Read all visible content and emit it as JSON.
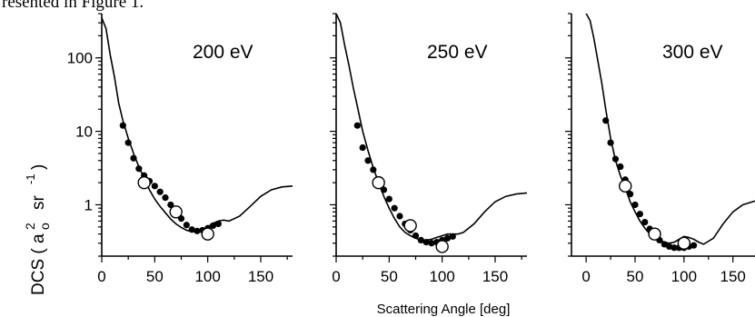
{
  "caption": "resented in Figure 1.",
  "axes": {
    "ylabel": "DCS ( a",
    "ylabel_sub": "o",
    "ylabel_sup": "2",
    "ylabel_unit": "sr",
    "ylabel_unit_sup": "-1",
    "ylabel_close": ")",
    "xlabel": "Scattering Angle [deg]",
    "yscale": "log"
  },
  "chart_data": [
    {
      "type": "line",
      "title": "200 eV",
      "xlim": [
        0,
        180
      ],
      "ylim": [
        0.2,
        400
      ],
      "xticks": [
        0,
        50,
        100,
        150
      ],
      "yticks": [
        1,
        10,
        100
      ],
      "ytick_labels": [
        "1",
        "10",
        "100"
      ],
      "series": [
        {
          "kind": "line",
          "x": [
            0,
            4,
            8,
            12,
            16,
            20,
            25,
            30,
            35,
            40,
            45,
            50,
            55,
            60,
            65,
            70,
            75,
            80,
            85,
            90,
            95,
            100,
            105,
            110,
            115,
            120,
            130,
            140,
            150,
            160,
            170,
            180
          ],
          "y": [
            350,
            250,
            110,
            55,
            24,
            14,
            8,
            5,
            3.3,
            2.3,
            1.6,
            1.2,
            0.95,
            0.78,
            0.64,
            0.55,
            0.49,
            0.45,
            0.43,
            0.43,
            0.45,
            0.5,
            0.56,
            0.6,
            0.62,
            0.6,
            0.7,
            0.95,
            1.3,
            1.6,
            1.75,
            1.8
          ]
        },
        {
          "kind": "filled-points",
          "x": [
            20,
            25,
            30,
            35,
            40,
            45,
            50,
            55,
            60,
            65,
            70,
            75,
            80,
            85,
            90,
            95,
            100,
            105,
            110
          ],
          "y": [
            12,
            7,
            4.3,
            3.1,
            2.5,
            2.1,
            1.8,
            1.5,
            1.25,
            1.0,
            0.82,
            0.65,
            0.53,
            0.46,
            0.44,
            0.45,
            0.48,
            0.52,
            0.55
          ]
        },
        {
          "kind": "open-points",
          "x": [
            40,
            70,
            100
          ],
          "y": [
            2.0,
            0.8,
            0.4
          ]
        }
      ]
    },
    {
      "type": "line",
      "title": "250 eV",
      "xlim": [
        0,
        180
      ],
      "ylim": [
        0.2,
        400
      ],
      "xticks": [
        0,
        50,
        100,
        150
      ],
      "yticks": [
        1,
        10,
        100
      ],
      "ytick_labels": [],
      "series": [
        {
          "kind": "line",
          "x": [
            0,
            4,
            8,
            12,
            16,
            20,
            25,
            30,
            35,
            40,
            45,
            50,
            55,
            60,
            65,
            70,
            75,
            80,
            85,
            90,
            95,
            100,
            105,
            110,
            115,
            120,
            130,
            140,
            150,
            160,
            170,
            180
          ],
          "y": [
            400,
            300,
            150,
            80,
            40,
            22,
            10,
            5.5,
            3.2,
            2.0,
            1.3,
            0.9,
            0.65,
            0.5,
            0.42,
            0.38,
            0.35,
            0.33,
            0.33,
            0.34,
            0.36,
            0.38,
            0.4,
            0.4,
            0.4,
            0.42,
            0.55,
            0.8,
            1.1,
            1.3,
            1.4,
            1.45
          ]
        },
        {
          "kind": "filled-points",
          "x": [
            20,
            25,
            30,
            35,
            40,
            45,
            50,
            55,
            60,
            65,
            70,
            75,
            80,
            85,
            90,
            95,
            100,
            105,
            110
          ],
          "y": [
            12,
            6,
            4,
            3,
            2.2,
            1.6,
            1.2,
            0.9,
            0.7,
            0.55,
            0.45,
            0.38,
            0.33,
            0.31,
            0.3,
            0.31,
            0.33,
            0.35,
            0.37
          ]
        },
        {
          "kind": "open-points",
          "x": [
            40,
            70,
            100
          ],
          "y": [
            2.0,
            0.52,
            0.27
          ]
        }
      ]
    },
    {
      "type": "line",
      "title": "300 eV",
      "xlim": [
        -15,
        180
      ],
      "ylim": [
        0.2,
        400
      ],
      "xticks": [
        0,
        50,
        100,
        150
      ],
      "yticks": [
        1,
        10,
        100
      ],
      "ytick_labels": [],
      "series": [
        {
          "kind": "line",
          "x": [
            0,
            4,
            8,
            12,
            16,
            20,
            25,
            30,
            35,
            40,
            45,
            50,
            55,
            60,
            65,
            70,
            75,
            80,
            85,
            90,
            95,
            100,
            105,
            110,
            115,
            120,
            130,
            140,
            150,
            160,
            170,
            180
          ],
          "y": [
            400,
            320,
            180,
            90,
            45,
            20,
            8,
            4,
            2.5,
            1.7,
            1.1,
            0.8,
            0.6,
            0.48,
            0.4,
            0.36,
            0.33,
            0.31,
            0.3,
            0.31,
            0.34,
            0.37,
            0.36,
            0.34,
            0.31,
            0.29,
            0.35,
            0.55,
            0.8,
            1.0,
            1.1,
            1.2
          ]
        },
        {
          "kind": "filled-points",
          "x": [
            20,
            25,
            30,
            35,
            40,
            45,
            50,
            55,
            60,
            65,
            70,
            75,
            80,
            85,
            90,
            95,
            100,
            105,
            110
          ],
          "y": [
            14,
            7,
            4.2,
            3.3,
            2.2,
            1.4,
            1.0,
            0.75,
            0.58,
            0.47,
            0.38,
            0.33,
            0.29,
            0.27,
            0.26,
            0.26,
            0.26,
            0.27,
            0.28
          ]
        },
        {
          "kind": "open-points",
          "x": [
            40,
            70,
            100
          ],
          "y": [
            1.8,
            0.4,
            0.3
          ]
        }
      ]
    }
  ]
}
